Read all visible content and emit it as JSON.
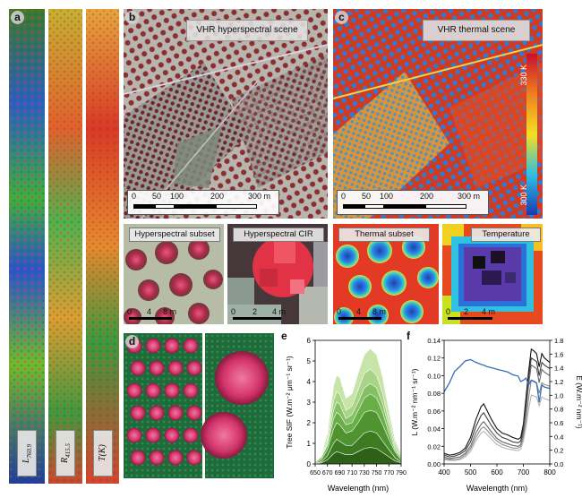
{
  "panels": {
    "a": {
      "letter": "a",
      "strip_labels": [
        "L760.9",
        "R415.5",
        "T(K)"
      ],
      "strip_labels_main": [
        "L",
        "R",
        "T(K)"
      ],
      "strip_labels_sub": [
        "760.9",
        "415.5",
        ""
      ]
    },
    "b": {
      "letter": "b",
      "title": "VHR hyperspectral scene",
      "scale_labels": [
        "0",
        "50",
        "100",
        "200",
        "300 m"
      ],
      "subset_title": "Hyperspectral subset",
      "subset_scale": [
        "0",
        "4",
        "8 m"
      ],
      "cir_title": "Hyperspectral CIR",
      "cir_scale": [
        "0",
        "2",
        "4 m"
      ]
    },
    "c": {
      "letter": "c",
      "title": "VHR thermal scene",
      "scale_labels": [
        "0",
        "50",
        "100",
        "200",
        "300 m"
      ],
      "colorbar_top": "330 K",
      "colorbar_bottom": "300 K",
      "subset_title": "Thermal subset",
      "subset_scale": [
        "0",
        "4",
        "8 m"
      ],
      "temp_title": "Temperature",
      "temp_scale": [
        "0",
        "2",
        "4 m"
      ]
    },
    "d": {
      "letter": "d"
    },
    "e": {
      "letter": "e"
    },
    "f": {
      "letter": "f"
    }
  },
  "chart_data": [
    {
      "panel": "e",
      "type": "area",
      "xlabel": "Wavelength (nm)",
      "ylabel": "Tree SIF (W.m⁻² μm⁻¹ sr⁻¹)",
      "xlim": [
        650,
        790
      ],
      "ylim": [
        0,
        6
      ],
      "xticks": [
        "650",
        "670",
        "690",
        "710",
        "730",
        "750",
        "770",
        "790"
      ],
      "xticks_display": [
        "650",
        "670",
        "690",
        "710",
        "730",
        "750",
        "770",
        "790"
      ],
      "yticks": [
        "0",
        "1",
        "2",
        "3",
        "4",
        "5",
        "6"
      ],
      "x": [
        650,
        660,
        670,
        680,
        685,
        690,
        700,
        710,
        720,
        730,
        740,
        750,
        760,
        770,
        780,
        790
      ],
      "series": [
        {
          "values": [
            0.1,
            0.3,
            0.9,
            2.2,
            2.5,
            2.4,
            1.9,
            2.0,
            2.6,
            3.2,
            3.4,
            3.2,
            2.5,
            1.5,
            0.7,
            0.3
          ]
        },
        {
          "values": [
            0.1,
            0.3,
            1.2,
            3.1,
            3.5,
            3.4,
            2.6,
            2.8,
            3.6,
            4.4,
            4.6,
            4.3,
            3.4,
            2.1,
            1.0,
            0.4
          ]
        },
        {
          "values": [
            0.1,
            0.4,
            1.5,
            3.8,
            4.3,
            4.2,
            3.2,
            3.4,
            4.4,
            5.3,
            5.6,
            5.3,
            4.2,
            2.6,
            1.2,
            0.5
          ]
        },
        {
          "values": [
            0.1,
            0.3,
            1.0,
            2.6,
            3.0,
            2.9,
            2.2,
            2.4,
            3.0,
            3.7,
            3.9,
            3.7,
            2.9,
            1.8,
            0.8,
            0.3
          ]
        },
        {
          "values": [
            0.05,
            0.2,
            0.7,
            1.7,
            2.0,
            1.9,
            1.5,
            1.6,
            2.0,
            2.5,
            2.6,
            2.5,
            1.9,
            1.2,
            0.6,
            0.2
          ]
        },
        {
          "values": [
            0.03,
            0.1,
            0.4,
            1.0,
            1.2,
            1.1,
            0.9,
            0.9,
            1.2,
            1.5,
            1.6,
            1.5,
            1.1,
            0.7,
            0.3,
            0.1
          ]
        },
        {
          "values": [
            0.02,
            0.05,
            0.2,
            0.5,
            0.6,
            0.55,
            0.45,
            0.45,
            0.6,
            0.75,
            0.8,
            0.75,
            0.55,
            0.35,
            0.15,
            0.05
          ]
        }
      ]
    },
    {
      "panel": "f",
      "type": "line",
      "xlabel": "Wavelength (nm)",
      "ylabel_left": "L (W.m⁻² nm⁻¹ sr⁻¹)",
      "ylabel_right": "E (W.m⁻² nm⁻¹)",
      "xlim": [
        400,
        800
      ],
      "ylim_left": [
        0,
        0.14
      ],
      "ylim_right": [
        0,
        1.8
      ],
      "xticks": [
        "400",
        "500",
        "600",
        "700",
        "800"
      ],
      "yticks_left": [
        "0.00",
        "0.02",
        "0.04",
        "0.06",
        "0.08",
        "0.10",
        "0.12",
        "0.14"
      ],
      "yticks_right": [
        "0.0",
        "0.2",
        "0.4",
        "0.6",
        "0.8",
        "1.0",
        "1.2",
        "1.4",
        "1.6",
        "1.8"
      ],
      "x": [
        400,
        420,
        440,
        460,
        480,
        500,
        520,
        540,
        550,
        560,
        580,
        600,
        620,
        640,
        660,
        680,
        690,
        700,
        710,
        720,
        730,
        740,
        750,
        760,
        770,
        780,
        800
      ],
      "irradiance_E": [
        1.05,
        1.18,
        1.35,
        1.42,
        1.5,
        1.52,
        1.48,
        1.45,
        1.44,
        1.42,
        1.4,
        1.38,
        1.36,
        1.34,
        1.3,
        1.28,
        1.2,
        1.22,
        1.25,
        1.15,
        1.22,
        1.2,
        1.18,
        0.9,
        1.15,
        1.12,
        1.1
      ],
      "series": [
        {
          "values": [
            0.012,
            0.01,
            0.011,
            0.013,
            0.018,
            0.03,
            0.05,
            0.065,
            0.068,
            0.062,
            0.05,
            0.04,
            0.035,
            0.033,
            0.03,
            0.028,
            0.03,
            0.045,
            0.075,
            0.105,
            0.13,
            0.128,
            0.125,
            0.11,
            0.125,
            0.12,
            0.115
          ]
        },
        {
          "values": [
            0.01,
            0.008,
            0.009,
            0.011,
            0.015,
            0.025,
            0.042,
            0.055,
            0.058,
            0.053,
            0.043,
            0.035,
            0.03,
            0.028,
            0.025,
            0.024,
            0.026,
            0.04,
            0.068,
            0.098,
            0.12,
            0.118,
            0.116,
            0.1,
            0.115,
            0.112,
            0.108
          ]
        },
        {
          "values": [
            0.008,
            0.006,
            0.007,
            0.008,
            0.012,
            0.02,
            0.035,
            0.045,
            0.048,
            0.044,
            0.036,
            0.029,
            0.025,
            0.023,
            0.021,
            0.02,
            0.022,
            0.035,
            0.06,
            0.09,
            0.112,
            0.11,
            0.108,
            0.092,
            0.107,
            0.104,
            0.1
          ]
        },
        {
          "values": [
            0.006,
            0.005,
            0.005,
            0.006,
            0.01,
            0.017,
            0.03,
            0.04,
            0.042,
            0.039,
            0.032,
            0.026,
            0.022,
            0.02,
            0.018,
            0.018,
            0.02,
            0.03,
            0.05,
            0.075,
            0.095,
            0.094,
            0.092,
            0.08,
            0.092,
            0.09,
            0.088
          ]
        },
        {
          "values": [
            0.005,
            0.004,
            0.004,
            0.005,
            0.008,
            0.014,
            0.026,
            0.035,
            0.037,
            0.034,
            0.028,
            0.022,
            0.019,
            0.017,
            0.016,
            0.015,
            0.017,
            0.026,
            0.042,
            0.062,
            0.078,
            0.077,
            0.076,
            0.066,
            0.076,
            0.074,
            0.072
          ]
        }
      ]
    }
  ],
  "colors": {
    "sif_fill_dark": "#3f7a1e",
    "sif_fill_light": "#d6ebc0",
    "irradiance": "#3b6db5"
  }
}
